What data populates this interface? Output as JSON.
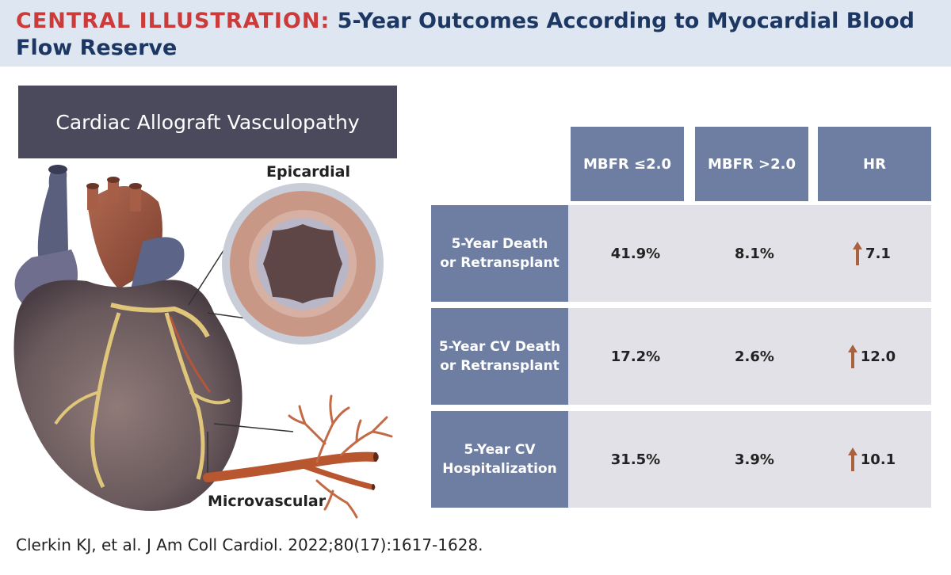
{
  "header": {
    "label": "CENTRAL ILLUSTRATION:",
    "title_line1": "5-Year Outcomes According to Myocardial Blood",
    "title_line2": "Flow Reserve"
  },
  "illustration": {
    "banner": "Cardiac Allograft Vasculopathy",
    "epicardial_label": "Epicardial",
    "microvascular_label": "Microvascular"
  },
  "table": {
    "columns": [
      "MBFR ≤2.0",
      "MBFR >2.0",
      "HR"
    ],
    "rows": [
      {
        "label": "5-Year Death\nor Retransplant",
        "low": "41.9%",
        "high": "8.1%",
        "hr": "7.1",
        "hr_icon": "arrow-up-icon"
      },
      {
        "label": "5-Year CV Death\nor Retransplant",
        "low": "17.2%",
        "high": "2.6%",
        "hr": "12.0",
        "hr_icon": "arrow-up-icon"
      },
      {
        "label": "5-Year CV\nHospitalization",
        "low": "31.5%",
        "high": "3.9%",
        "hr": "10.1",
        "hr_icon": "arrow-up-icon"
      }
    ],
    "colors": {
      "header_bg": "#6d7ea2",
      "row_bg": "#e1e1e7",
      "arrow": "#a9623f"
    }
  },
  "citation": "Clerkin KJ, et al. J Am Coll Cardiol. 2022;80(17):1617-1628."
}
